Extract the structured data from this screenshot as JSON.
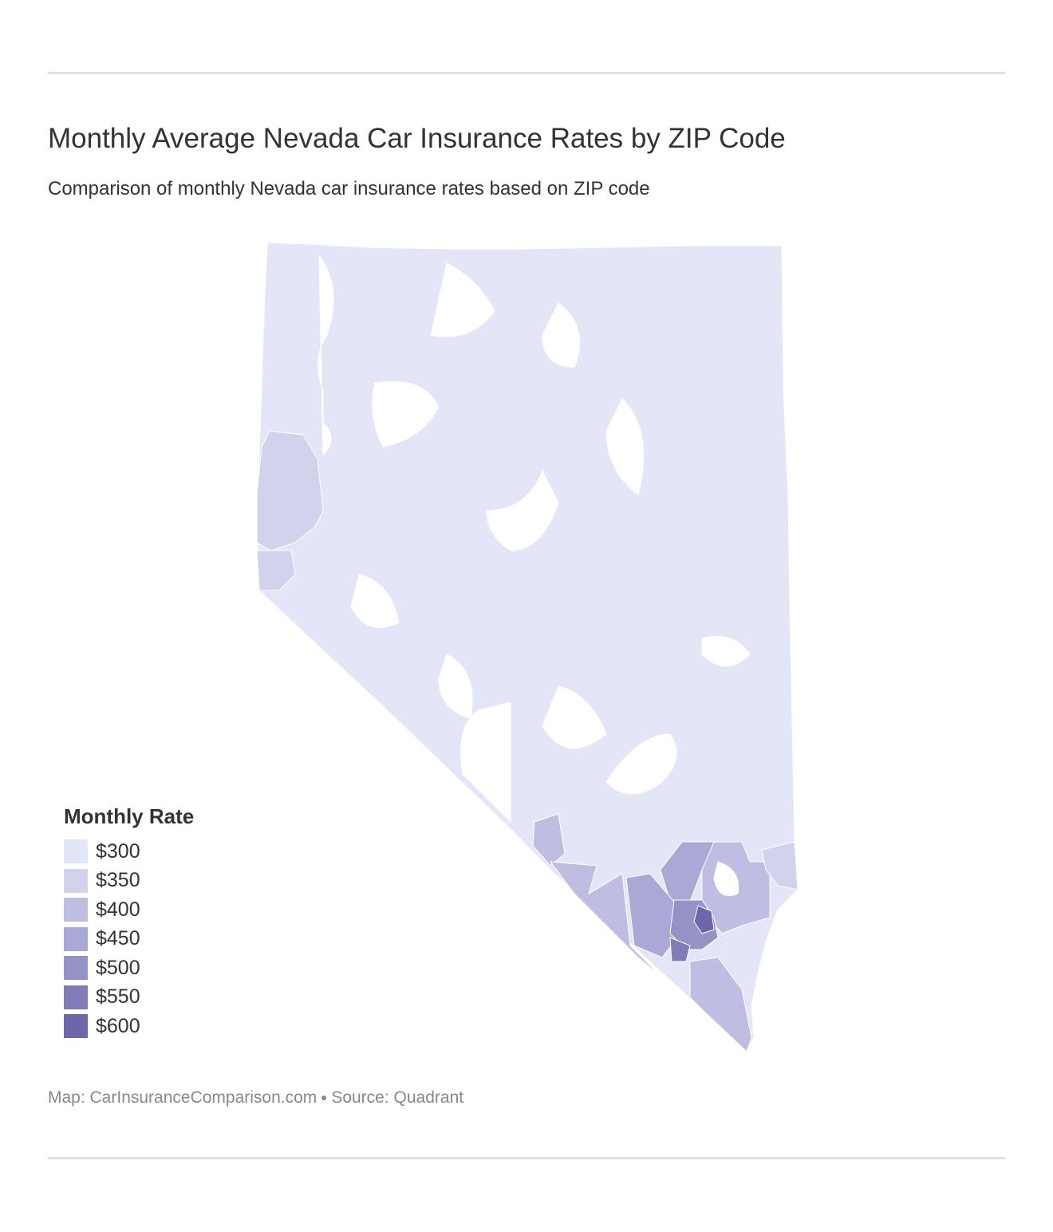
{
  "header": {
    "title": "Monthly Average Nevada Car Insurance Rates by ZIP Code",
    "subtitle": "Comparison of monthly Nevada car insurance rates based on ZIP code"
  },
  "legend": {
    "title": "Monthly Rate",
    "items": [
      {
        "label": "$300",
        "color": "#e3e6f7"
      },
      {
        "label": "$350",
        "color": "#d1d3ed"
      },
      {
        "label": "$400",
        "color": "#bdbee1"
      },
      {
        "label": "$450",
        "color": "#aaa9d5"
      },
      {
        "label": "$500",
        "color": "#9592c6"
      },
      {
        "label": "$550",
        "color": "#817cb8"
      },
      {
        "label": "$600",
        "color": "#6c66ab"
      }
    ]
  },
  "footer": {
    "credit": "Map: CarInsuranceComparison.com",
    "source": "Source: Quadrant"
  }
}
